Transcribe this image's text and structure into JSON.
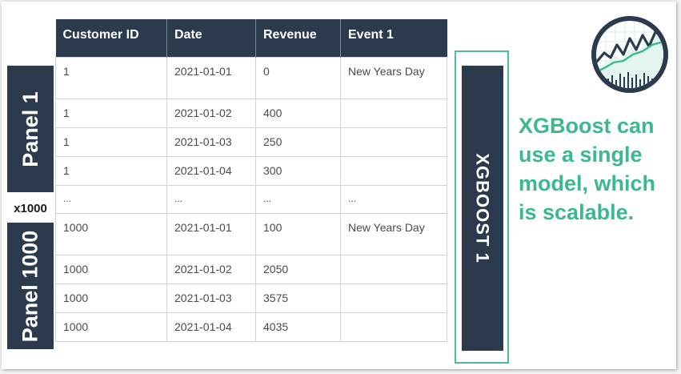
{
  "table": {
    "headers": [
      "Customer ID",
      "Date",
      "Revenue",
      "Event 1"
    ],
    "rows": [
      [
        "1",
        "2021-01-01",
        "0",
        "New Years Day"
      ],
      [
        "1",
        "2021-01-02",
        "400",
        ""
      ],
      [
        "1",
        "2021-01-03",
        "250",
        ""
      ],
      [
        "1",
        "2021-01-04",
        "300",
        ""
      ],
      [
        "...",
        "...",
        "...",
        "..."
      ],
      [
        "1000",
        "2021-01-01",
        "100",
        "New Years Day"
      ],
      [
        "1000",
        "2021-01-02",
        "2050",
        ""
      ],
      [
        "1000",
        "2021-01-03",
        "3575",
        ""
      ],
      [
        "1000",
        "2021-01-04",
        "4035",
        ""
      ]
    ]
  },
  "panels": {
    "first": "Panel 1",
    "last": "Panel 1000",
    "multiplier": "x1000"
  },
  "model": {
    "label": "XGBOOST 1"
  },
  "callout": {
    "text": "XGBoost can use a single model, which is scalable."
  },
  "logo": {
    "icon": "stock-chart-logo-icon"
  },
  "colors": {
    "navy": "#2b3a4d",
    "accent_green": "#3cb98c",
    "frame_green": "#4cbf95"
  }
}
